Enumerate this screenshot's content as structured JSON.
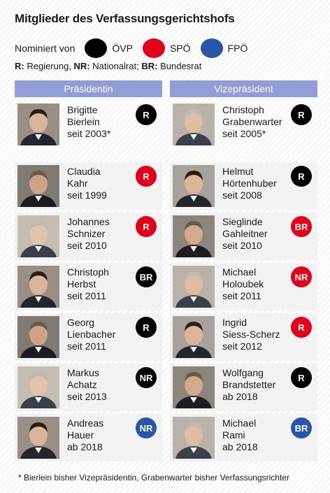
{
  "title": "Mitglieder des Verfassungsgerichtshofs",
  "legend": {
    "label": "Nominiert von",
    "items": [
      {
        "label": "ÖVP",
        "color": "#000000"
      },
      {
        "label": "SPÖ",
        "color": "#e2001a"
      },
      {
        "label": "FPÖ",
        "color": "#2756a8"
      }
    ]
  },
  "abbreviations": [
    {
      "key": "R:",
      "text": " Regierung, "
    },
    {
      "key": "NR:",
      "text": " Nationalrat; "
    },
    {
      "key": "BR:",
      "text": " Bundesrat"
    }
  ],
  "columns": {
    "left_header": "Präsidentin",
    "right_header": "Vizepräsident"
  },
  "colors": {
    "R_black": "#000000",
    "red": "#e2001a",
    "blue": "#2756a8",
    "header": "#8f9ed6"
  },
  "president": {
    "first": "Brigitte",
    "last": "Bierlein",
    "since": "seit 2003*",
    "badge": "R",
    "color": "#000000"
  },
  "vice": {
    "first": "Christoph",
    "last": "Grabenwarter",
    "since": "seit 2005*",
    "badge": "R",
    "color": "#000000"
  },
  "members": [
    [
      {
        "first": "Claudia",
        "last": "Kahr",
        "since": "seit 1999",
        "badge": "R",
        "color": "#e2001a"
      },
      {
        "first": "Helmut",
        "last": "Hörtenhuber",
        "since": "seit 2008",
        "badge": "R",
        "color": "#000000"
      }
    ],
    [
      {
        "first": "Johannes",
        "last": "Schnizer",
        "since": "seit 2010",
        "badge": "R",
        "color": "#e2001a"
      },
      {
        "first": "Sieglinde",
        "last": "Gahleitner",
        "since": "seit 2010",
        "badge": "BR",
        "color": "#e2001a"
      }
    ],
    [
      {
        "first": "Christoph",
        "last": "Herbst",
        "since": "seit 2011",
        "badge": "BR",
        "color": "#000000"
      },
      {
        "first": "Michael",
        "last": "Holoubek",
        "since": "seit 2011",
        "badge": "NR",
        "color": "#e2001a"
      }
    ],
    [
      {
        "first": "Georg",
        "last": "Lienbacher",
        "since": "seit 2011",
        "badge": "R",
        "color": "#000000"
      },
      {
        "first": "Ingrid",
        "last": "Siess-Scherz",
        "since": "seit 2012",
        "badge": "R",
        "color": "#e2001a"
      }
    ],
    [
      {
        "first": "Markus",
        "last": "Achatz",
        "since": "seit 2013",
        "badge": "NR",
        "color": "#000000"
      },
      {
        "first": "Wolfgang",
        "last": "Brandstetter",
        "since": "ab 2018",
        "badge": "R",
        "color": "#000000"
      }
    ],
    [
      {
        "first": "Andreas",
        "last": "Hauer",
        "since": "ab 2018",
        "badge": "NR",
        "color": "#2756a8"
      },
      {
        "first": "Michael",
        "last": "Rami",
        "since": "ab 2018",
        "badge": "BR",
        "color": "#2756a8"
      }
    ]
  ],
  "footnote": "* Bierlein bisher Vizepräsidentin, Grabenwarter bisher Verfassungsrichter"
}
